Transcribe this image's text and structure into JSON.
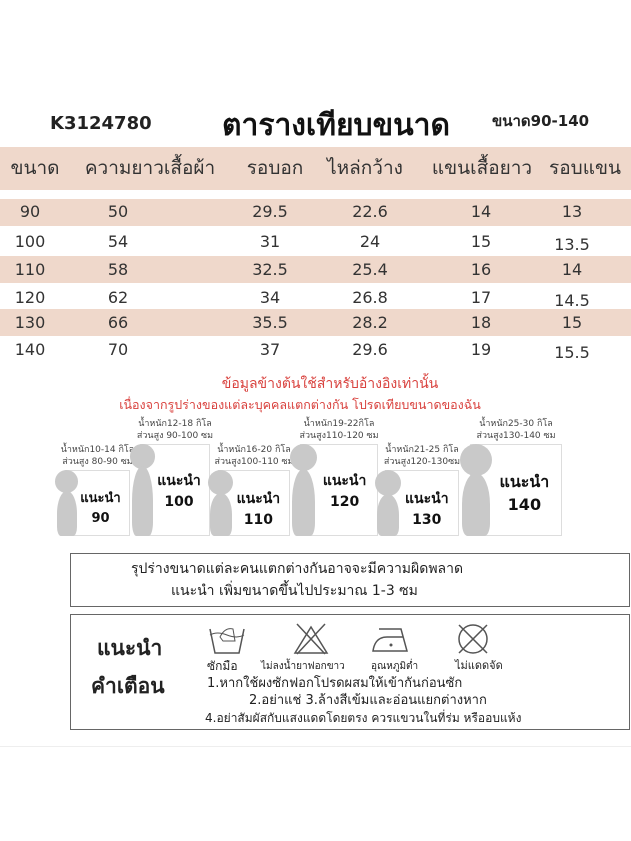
{
  "header": {
    "code": "K3124780",
    "title": "ตารางเทียบขนาด",
    "range": "ขนาด90-140"
  },
  "table": {
    "columns": [
      "ขนาด",
      "ความยาวเสื้อผ้า",
      "รอบอก",
      "ไหล่กว้าง",
      "แขนเสื้อยาว",
      "รอบแขน"
    ],
    "rows": [
      [
        "90",
        "50",
        "29.5",
        "22.6",
        "14",
        "13"
      ],
      [
        "100",
        "54",
        "31",
        "24",
        "15",
        "13.5"
      ],
      [
        "110",
        "58",
        "32.5",
        "25.4",
        "16",
        "14"
      ],
      [
        "120",
        "62",
        "34",
        "26.8",
        "17",
        "14.5"
      ],
      [
        "130",
        "66",
        "35.5",
        "28.2",
        "18",
        "15"
      ],
      [
        "140",
        "70",
        "37",
        "29.6",
        "19",
        "15.5"
      ]
    ]
  },
  "notes": [
    "ข้อมูลข้างต้นใช้สำหรับอ้างอิงเท่านั้น",
    "เนื่องจากรูปร่างของแต่ละบุคคลแตกต่างกัน โปรดเทียบขนาดของฉัน"
  ],
  "figures": [
    {
      "weight": "น้ำหนัก10-14 กิโล",
      "height": "ส่วนสูง 80-90 ซม",
      "label": "แนะนำ",
      "size": "90"
    },
    {
      "weight": "น้ำหนัก12-18 กิโล",
      "height": "ส่วนสูง 90-100 ซม",
      "label": "แนะนำ",
      "size": "100"
    },
    {
      "weight": "น้ำหนัก16-20 กิโล",
      "height": "ส่วนสูง100-110 ซม",
      "label": "แนะนำ",
      "size": "110"
    },
    {
      "weight": "น้ำหนัก19-22กิโล",
      "height": "ส่วนสูง110-120 ซม",
      "label": "แนะนำ",
      "size": "120"
    },
    {
      "weight": "น้ำหนัก21-25 กิโล",
      "height": "ส่วนสูง120-130ซม",
      "label": "แนะนำ",
      "size": "130"
    },
    {
      "weight": "น้ำหนัก25-30 กิโล",
      "height": "ส่วนสูง130-140 ซม",
      "label": "แนะนำ",
      "size": "140"
    }
  ],
  "disclaimer": [
    "รุปร่างขนาดแต่ละคนแตกต่างกันอาจจะมีความผิดพลาด",
    "แนะนำ เพิ่มขนาดขึ้นไปประมาณ 1-3 ซม"
  ],
  "care": {
    "title1": "แนะนำ",
    "title2": "คำเตือน",
    "icons": [
      {
        "icon": "hand-wash-icon",
        "label": "ซักมือ"
      },
      {
        "icon": "no-bleach-icon",
        "label": "ไม่ลงน้ำยาฟอกขาว"
      },
      {
        "icon": "iron-low-icon",
        "label": "อุณหภูมิต่ำ"
      },
      {
        "icon": "no-tumble-dry-icon",
        "label": "ไม่แดดจัด"
      }
    ],
    "lines": [
      "1.หากใช้ผงซักฟอกโปรดผสมให้เข้ากันก่อนซัก",
      "2.อย่าแช่ 3.ล้างสีเข้มและอ่อนแยกต่างหาก",
      "4.อย่าสัมผัสกับแสงแดดโดยตรง ควรแขวนในที่ร่ม หรืออบแห้ง"
    ]
  }
}
